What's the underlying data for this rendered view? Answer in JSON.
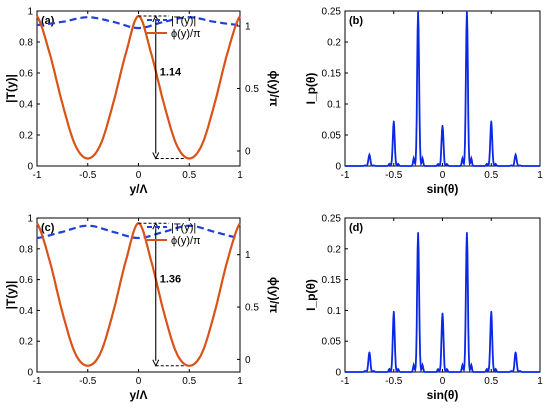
{
  "colors": {
    "amp": "#1f3fdc",
    "phase": "#d95319",
    "spectrum": "#0a28e6",
    "axis": "#000000"
  },
  "chart_data": [
    {
      "id": "a",
      "type": "line",
      "panel_label": "(a)",
      "xlabel": "y/Λ",
      "ylabel_left": "|T(y)|",
      "ylabel_right": "ϕ(y)/π",
      "xlim": [
        -1,
        1
      ],
      "ylim_left": [
        0,
        1
      ],
      "ylim_right": [
        -0.12,
        1.12
      ],
      "xticks": [
        "-1",
        "-0.5",
        "0",
        "0.5",
        "1"
      ],
      "yticks_left": [
        "0",
        "0.2",
        "0.4",
        "0.6",
        "0.8",
        "1"
      ],
      "yticks_right": [
        "0",
        "0.5",
        "1"
      ],
      "legend": [
        "|T(y)|",
        "ϕ(y)/π"
      ],
      "series": [
        {
          "name": "|T(y)|",
          "axis": "left",
          "style": "dashed",
          "x": [
            -1,
            -0.75,
            -0.5,
            -0.25,
            0,
            0.25,
            0.5,
            0.75,
            1
          ],
          "y": [
            0.91,
            0.93,
            0.96,
            0.93,
            0.89,
            0.93,
            0.96,
            0.93,
            0.91
          ]
        },
        {
          "name": "ϕ(y)/π",
          "axis": "right",
          "style": "solid",
          "x": [
            -1,
            -0.875,
            -0.75,
            -0.625,
            -0.5,
            -0.375,
            -0.25,
            -0.125,
            0,
            0.125,
            0.25,
            0.375,
            0.5,
            0.625,
            0.75,
            0.875,
            1
          ],
          "y": [
            1.08,
            0.78,
            0.38,
            0.05,
            -0.06,
            0.05,
            0.38,
            0.78,
            1.08,
            0.78,
            0.38,
            0.05,
            -0.06,
            0.05,
            0.38,
            0.78,
            1.08
          ]
        }
      ],
      "annotation": {
        "text": "1.14",
        "x": 0.17,
        "y_top": 1.08,
        "y_bottom": -0.06
      }
    },
    {
      "id": "b",
      "type": "line",
      "panel_label": "(b)",
      "xlabel": "sin(θ)",
      "ylabel": "I_p(θ)",
      "xlim": [
        -1,
        1
      ],
      "ylim": [
        0,
        0.25
      ],
      "xticks": [
        "-1",
        "-0.5",
        "0",
        "0.5",
        "1"
      ],
      "yticks": [
        "0",
        "0.05",
        "0.1",
        "0.15",
        "0.2",
        "0.25"
      ],
      "peaks": [
        {
          "x": -0.75,
          "y": 0.018
        },
        {
          "x": -0.5,
          "y": 0.072
        },
        {
          "x": -0.25,
          "y": 0.248
        },
        {
          "x": 0,
          "y": 0.065
        },
        {
          "x": 0.25,
          "y": 0.248
        },
        {
          "x": 0.5,
          "y": 0.072
        },
        {
          "x": 0.75,
          "y": 0.018
        }
      ]
    },
    {
      "id": "c",
      "type": "line",
      "panel_label": "(c)",
      "xlabel": "y/Λ",
      "ylabel_left": "|T(y)|",
      "ylabel_right": "ϕ(y)/π",
      "xlim": [
        -1,
        1
      ],
      "ylim_left": [
        0,
        1
      ],
      "ylim_right": [
        -0.12,
        1.35
      ],
      "xticks": [
        "-1",
        "-0.5",
        "0",
        "0.5",
        "1"
      ],
      "yticks_left": [
        "0",
        "0.2",
        "0.4",
        "0.6",
        "0.8",
        "1"
      ],
      "yticks_right": [
        "0",
        "0.5",
        "1"
      ],
      "legend": [
        "|T(y)|",
        "ϕ(y)/π"
      ],
      "series": [
        {
          "name": "|T(y)|",
          "axis": "left",
          "style": "dashed",
          "x": [
            -1,
            -0.75,
            -0.5,
            -0.25,
            0,
            0.25,
            0.5,
            0.75,
            1
          ],
          "y": [
            0.87,
            0.91,
            0.95,
            0.91,
            0.87,
            0.91,
            0.95,
            0.91,
            0.87
          ]
        },
        {
          "name": "ϕ(y)/π",
          "axis": "right",
          "style": "solid",
          "x": [
            -1,
            -0.875,
            -0.75,
            -0.625,
            -0.5,
            -0.375,
            -0.25,
            -0.125,
            0,
            0.125,
            0.25,
            0.375,
            0.5,
            0.625,
            0.75,
            0.875,
            1
          ],
          "y": [
            1.3,
            0.94,
            0.45,
            0.06,
            -0.06,
            0.06,
            0.45,
            0.94,
            1.3,
            0.94,
            0.45,
            0.06,
            -0.06,
            0.06,
            0.45,
            0.94,
            1.3
          ]
        }
      ],
      "annotation": {
        "text": "1.36",
        "x": 0.17,
        "y_top": 1.3,
        "y_bottom": -0.06
      }
    },
    {
      "id": "d",
      "type": "line",
      "panel_label": "(d)",
      "xlabel": "sin(θ)",
      "ylabel": "I_p(θ)",
      "xlim": [
        -1,
        1
      ],
      "ylim": [
        0,
        0.25
      ],
      "xticks": [
        "-1",
        "-0.5",
        "0",
        "0.5",
        "1"
      ],
      "yticks": [
        "0",
        "0.05",
        "0.1",
        "0.15",
        "0.2",
        "0.25"
      ],
      "peaks": [
        {
          "x": -0.75,
          "y": 0.032
        },
        {
          "x": -0.5,
          "y": 0.098
        },
        {
          "x": -0.25,
          "y": 0.226
        },
        {
          "x": 0,
          "y": 0.095
        },
        {
          "x": 0.25,
          "y": 0.226
        },
        {
          "x": 0.5,
          "y": 0.098
        },
        {
          "x": 0.75,
          "y": 0.032
        }
      ]
    }
  ]
}
